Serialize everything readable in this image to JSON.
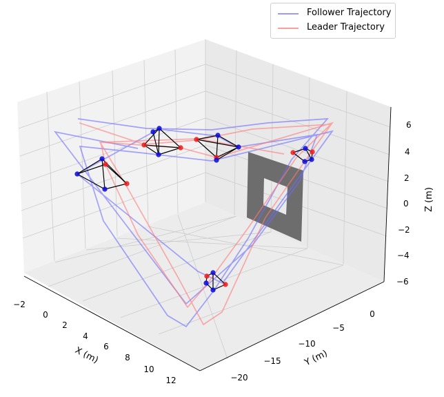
{
  "chart_data": {
    "type": "line",
    "projection": "3d",
    "title": "",
    "xlabel": "X (m)",
    "ylabel": "Y (m)",
    "zlabel": "Z (m)",
    "x_ticks": [
      "−2",
      "0",
      "2",
      "4",
      "6",
      "8",
      "10",
      "12"
    ],
    "y_ticks": [
      "−20",
      "−15",
      "−10",
      "−5",
      "0"
    ],
    "z_ticks": [
      "−6",
      "−4",
      "−2",
      "0",
      "2",
      "4",
      "6"
    ],
    "grid": true,
    "legend_position": "top-right",
    "colors": {
      "follower": "#6b6bff",
      "leader": "#ff7a7a",
      "follower_marker": "#1010dd",
      "leader_marker": "#ee2222",
      "edge": "#000000",
      "gate": "#6d6d6d"
    },
    "series": [
      {
        "name": "Follower Trajectory",
        "color": "#6b6bff"
      },
      {
        "name": "Leader Trajectory",
        "color": "#ff7a7a"
      }
    ]
  },
  "legend": {
    "follower_label": "Follower Trajectory",
    "leader_label": "Leader Trajectory"
  }
}
